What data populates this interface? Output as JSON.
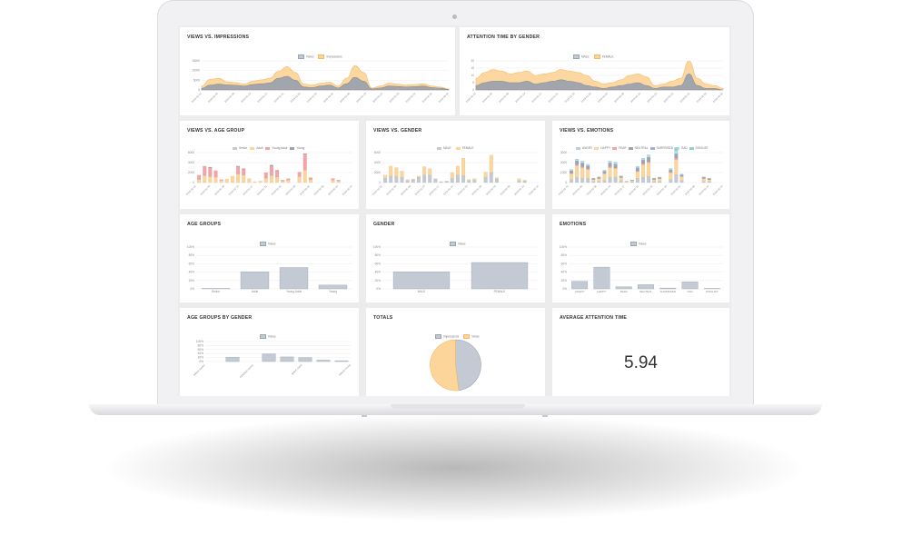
{
  "colors": {
    "orange": "#fcd59b",
    "orange_stroke": "#f7b766",
    "gray": "#c4cad4",
    "gray_stroke": "#9aa3b0",
    "red": "#f5a3a6",
    "dark": "#9da3ad",
    "green": "#8fd3c0",
    "cyan": "#aee5ef",
    "blue": "#95b3e3",
    "pink": "#f2c9d2"
  },
  "panels": {
    "views_impressions": {
      "title": "VIEWS VS. IMPRESSIONS",
      "legend": [
        "Views",
        "Impressions"
      ]
    },
    "attention_gender": {
      "title": "ATTENTION TIME BY GENDER",
      "legend": [
        "MALE",
        "FEMALE"
      ]
    },
    "views_age": {
      "title": "VIEWS VS. AGE GROUP",
      "legend": [
        "Senior",
        "Adult",
        "Young Adult",
        "Young"
      ]
    },
    "views_gender": {
      "title": "VIEWS VS. GENDER",
      "legend": [
        "MALE",
        "FEMALE"
      ]
    },
    "views_emotions": {
      "title": "VIEWS VS. EMOTIONS",
      "legend": [
        "ANGRY",
        "HAPPY",
        "FEAR",
        "NEUTRAL",
        "SURPRISED",
        "SAD",
        "DISGUST"
      ]
    },
    "age_groups": {
      "title": "AGE GROUPS",
      "legend": [
        "Views"
      ]
    },
    "gender": {
      "title": "GENDER",
      "legend": [
        "Views"
      ]
    },
    "emotions": {
      "title": "EMOTIONS",
      "legend": [
        "Views"
      ]
    },
    "age_by_gender": {
      "title": "AGE GROUPS BY GENDER",
      "legend": [
        "Views"
      ]
    },
    "totals": {
      "title": "TOTALS",
      "legend": [
        "Impressions",
        "Views"
      ]
    },
    "average_attention": {
      "title": "AVERAGE ATTENTION TIME",
      "value": "5.94"
    }
  },
  "chart_data": [
    {
      "id": "views_impressions",
      "type": "area",
      "x": [
        "2019/01/01",
        "2019/01/05",
        "2019/01/09",
        "2019/01/13",
        "2019/01/17",
        "2019/01/21",
        "2019/01/25",
        "2019/01/29",
        "2019/02/02",
        "2019/02/06",
        "2019/02/10",
        "2019/02/14",
        "2019/02/18",
        "2019/02/22",
        "2019/02/26",
        "2019/03/02",
        "2019/03/06",
        "2019/03/10",
        "2019/03/14",
        "2019/03/18",
        "2019/03/22",
        "2019/03/26",
        "2019/03/30",
        "2019/04/03",
        "2019/04/07",
        "2019/04/11",
        "2019/04/15",
        "2019/04/19",
        "2019/04/23",
        "2019/04/27"
      ],
      "x_tick_labels": [
        "2019-01-01",
        "2019-01-05",
        "2019-01-09",
        "2019-01-13",
        "2019-01-17",
        "2019-01-21",
        "2019-01-25",
        "2019-01-29",
        "2019-02-02",
        "2019-02-06",
        "2019-02-10",
        "2019-02-14",
        "2019-02-18",
        "2019-02-22",
        "2019-02-26",
        "2019-03-02"
      ],
      "y_ticks": [
        "15000",
        "10000",
        "5000",
        "0"
      ],
      "ylim": [
        0,
        15000
      ],
      "series": [
        {
          "name": "Impressions",
          "values": [
            2000,
            5500,
            6000,
            4200,
            3800,
            3000,
            4500,
            5200,
            6000,
            9500,
            12000,
            9000,
            3000,
            2500,
            3500,
            4000,
            2000,
            6000,
            12500,
            9000,
            1000,
            2000,
            3500,
            3000,
            2500,
            2800,
            3200,
            2000,
            1500,
            500
          ]
        },
        {
          "name": "Views",
          "values": [
            800,
            2500,
            3000,
            2600,
            2400,
            2000,
            2800,
            3200,
            3600,
            6000,
            7000,
            5000,
            1500,
            1200,
            2000,
            2500,
            1000,
            3200,
            6500,
            4500,
            500,
            1000,
            2000,
            1800,
            1500,
            1700,
            2000,
            1200,
            900,
            300
          ]
        }
      ]
    },
    {
      "id": "attention_gender",
      "type": "area",
      "x_tick_labels": [
        "2019-01-01",
        "2019-01-05",
        "2019-01-09",
        "2019-01-13",
        "2019-01-17",
        "2019-01-21",
        "2019-01-25",
        "2019-01-29",
        "2019-02-02",
        "2019-02-06",
        "2019-02-10",
        "2019-02-14",
        "2019-02-18",
        "2019-02-22",
        "2019-02-26",
        "2019-03-02"
      ],
      "y_ticks": [
        "20",
        "15",
        "10",
        "5",
        "0"
      ],
      "ylim": [
        0,
        20
      ],
      "series": [
        {
          "name": "FEMALE",
          "values": [
            8,
            12,
            14,
            13,
            11,
            12,
            13,
            10,
            11,
            12,
            14,
            13,
            12,
            10,
            6,
            4,
            5,
            7,
            10,
            11,
            9,
            3,
            4,
            6,
            8,
            20,
            8,
            4,
            3,
            1
          ]
        },
        {
          "name": "MALE",
          "values": [
            3,
            5,
            6,
            6,
            5,
            5,
            6,
            4,
            5,
            6,
            7,
            6,
            5,
            3,
            2,
            1,
            2,
            3,
            4,
            5,
            3,
            1,
            2,
            2,
            3,
            11,
            3,
            1,
            1,
            0
          ]
        }
      ]
    },
    {
      "id": "views_age",
      "type": "bar",
      "stacked": true,
      "x_tick_labels": [
        "2019-01-01",
        "2019-01-05",
        "2019-01-09",
        "2019-01-13",
        "2019-01-17",
        "2019-01-21",
        "2019-01-25",
        "2019-01-29",
        "2019-02-02",
        "2019-02-06",
        "2019-02-10",
        "2019-02-14"
      ],
      "y_ticks": [
        "6000",
        "4000",
        "2000",
        "0"
      ],
      "ylim": [
        0,
        6000
      ],
      "series": [
        {
          "name": "Senior",
          "values": [
            0,
            0,
            0,
            0,
            0,
            0,
            0,
            0,
            0,
            0,
            0,
            0,
            0,
            0,
            0,
            0,
            0,
            0,
            0,
            0,
            0,
            0,
            0,
            0,
            0,
            0,
            0,
            0
          ]
        },
        {
          "name": "Adult",
          "values": [
            600,
            1400,
            1200,
            1100,
            400,
            700,
            1300,
            1700,
            1500,
            800,
            200,
            300,
            900,
            1400,
            1100,
            300,
            500,
            0,
            1200,
            2500,
            600,
            0,
            0,
            0,
            500,
            300,
            0,
            0
          ]
        },
        {
          "name": "Young Adult",
          "values": [
            900,
            1900,
            1800,
            1300,
            200,
            0,
            0,
            1500,
            1200,
            0,
            0,
            0,
            1100,
            1900,
            1400,
            200,
            300,
            0,
            900,
            3200,
            400,
            0,
            0,
            0,
            300,
            200,
            0,
            0
          ]
        },
        {
          "name": "Young",
          "values": [
            0,
            0,
            100,
            0,
            0,
            0,
            0,
            100,
            100,
            0,
            0,
            0,
            0,
            200,
            0,
            0,
            0,
            0,
            0,
            100,
            0,
            0,
            0,
            0,
            0,
            0,
            0,
            0
          ]
        }
      ]
    },
    {
      "id": "views_gender",
      "type": "bar",
      "stacked": true,
      "x_tick_labels": [
        "2019-01-01",
        "2019-01-05",
        "2019-01-09",
        "2019-01-13",
        "2019-01-17",
        "2019-01-21",
        "2019-01-25",
        "2019-01-29",
        "2019-02-02",
        "2019-02-06",
        "2019-02-10",
        "2019-02-14"
      ],
      "y_ticks": [
        "6000",
        "4000",
        "2000",
        "0"
      ],
      "ylim": [
        0,
        6000
      ],
      "series": [
        {
          "name": "MALE",
          "values": [
            800,
            1300,
            1200,
            1000,
            400,
            600,
            1000,
            1500,
            1500,
            700,
            200,
            300,
            800,
            1500,
            1400,
            400,
            500,
            0,
            1000,
            2000,
            700,
            0,
            0,
            0,
            400,
            300,
            0,
            0
          ]
        },
        {
          "name": "FEMALE",
          "values": [
            700,
            2000,
            1800,
            1300,
            200,
            100,
            300,
            1700,
            1300,
            100,
            0,
            0,
            1200,
            1800,
            3500,
            200,
            300,
            0,
            1100,
            3500,
            300,
            0,
            0,
            0,
            400,
            200,
            0,
            0
          ]
        }
      ]
    },
    {
      "id": "views_emotions",
      "type": "bar",
      "stacked": true,
      "x_tick_labels": [
        "2019-01-01",
        "2019-01-05",
        "2019-01-09",
        "2019-01-13",
        "2019-01-17",
        "2019-01-21",
        "2019-01-25",
        "2019-01-29",
        "2019-02-02",
        "2019-02-06",
        "2019-02-10",
        "2019-02-14"
      ],
      "y_ticks": [
        "3000",
        "2000",
        "1000",
        "0"
      ],
      "ylim": [
        0,
        3000
      ],
      "series": [
        {
          "name": "ANGRY",
          "values": [
            300,
            500,
            400,
            400,
            100,
            100,
            200,
            500,
            500,
            200,
            0,
            100,
            400,
            500,
            600,
            100,
            100,
            0,
            300,
            800,
            200,
            0,
            0,
            0,
            100,
            100,
            0,
            0
          ]
        },
        {
          "name": "HAPPY",
          "values": [
            600,
            1200,
            1100,
            900,
            200,
            300,
            700,
            1000,
            900,
            300,
            100,
            100,
            700,
            1300,
            1400,
            200,
            300,
            0,
            700,
            1500,
            400,
            0,
            0,
            0,
            300,
            200,
            0,
            0
          ]
        },
        {
          "name": "FEAR",
          "values": [
            50,
            100,
            100,
            80,
            20,
            20,
            50,
            100,
            100,
            20,
            0,
            10,
            80,
            100,
            100,
            20,
            20,
            0,
            50,
            150,
            40,
            0,
            0,
            0,
            20,
            10,
            0,
            0
          ]
        },
        {
          "name": "NEUTRAL",
          "values": [
            200,
            300,
            300,
            250,
            60,
            80,
            150,
            300,
            300,
            80,
            20,
            30,
            250,
            300,
            350,
            60,
            60,
            0,
            200,
            350,
            100,
            0,
            0,
            0,
            80,
            60,
            0,
            0
          ]
        },
        {
          "name": "SURPRISED",
          "values": [
            50,
            80,
            80,
            60,
            20,
            20,
            40,
            80,
            80,
            20,
            0,
            10,
            60,
            80,
            100,
            20,
            20,
            0,
            50,
            120,
            30,
            0,
            0,
            0,
            20,
            20,
            0,
            0
          ]
        },
        {
          "name": "SAD",
          "values": [
            100,
            150,
            150,
            120,
            40,
            50,
            90,
            150,
            150,
            50,
            10,
            20,
            120,
            150,
            200,
            40,
            40,
            0,
            100,
            250,
            60,
            0,
            0,
            0,
            40,
            30,
            0,
            0
          ]
        },
        {
          "name": "DISGUST",
          "values": [
            10,
            20,
            20,
            20,
            10,
            10,
            10,
            20,
            20,
            10,
            0,
            0,
            20,
            20,
            30,
            10,
            10,
            0,
            10,
            300,
            10,
            0,
            0,
            0,
            10,
            10,
            0,
            0
          ]
        }
      ]
    },
    {
      "id": "age_groups",
      "type": "bar",
      "categories": [
        "Senior",
        "Adult",
        "Young Adult",
        "Young"
      ],
      "values": [
        1,
        41,
        51,
        9
      ],
      "y_ticks": [
        "100%",
        "80%",
        "60%",
        "40%",
        "20%",
        "0%"
      ],
      "ylim": [
        0,
        100
      ]
    },
    {
      "id": "gender",
      "type": "bar",
      "categories": [
        "MALE",
        "FEMALE"
      ],
      "values": [
        41,
        63
      ],
      "y_ticks": [
        "100%",
        "80%",
        "60%",
        "40%",
        "20%",
        "0%"
      ],
      "ylim": [
        0,
        100
      ]
    },
    {
      "id": "emotions",
      "type": "bar",
      "categories": [
        "ANGRY",
        "HAPPY",
        "FEAR",
        "NEUTRAL",
        "SURPRISED",
        "SAD",
        "DISGUST"
      ],
      "values": [
        18,
        52,
        5,
        10,
        2,
        17,
        1
      ],
      "y_ticks": [
        "100%",
        "80%",
        "60%",
        "40%",
        "20%",
        "0%"
      ],
      "ylim": [
        0,
        100
      ]
    },
    {
      "id": "age_by_gender",
      "type": "bar",
      "categories": [
        "MALE-Senior",
        "FEMALE-Senior",
        "MALE-Adult",
        "FEMALE-Adult",
        "MALE-Young Adult",
        "FEMALE-Young Adult",
        "MALE-Young",
        "FEMALE-Young"
      ],
      "x_tick_labels": [
        "MALE-Senior",
        "FEMALE-Senior",
        "MALE-Adult",
        "MALE-Young"
      ],
      "values": [
        0,
        22,
        0,
        38,
        23,
        20,
        7,
        4
      ],
      "y_ticks": [
        "100%",
        "80%",
        "60%",
        "40%",
        "20%",
        "0%"
      ],
      "ylim": [
        0,
        100
      ]
    },
    {
      "id": "totals",
      "type": "pie",
      "categories": [
        "Impressions",
        "Views"
      ],
      "values": [
        48,
        52
      ]
    }
  ]
}
